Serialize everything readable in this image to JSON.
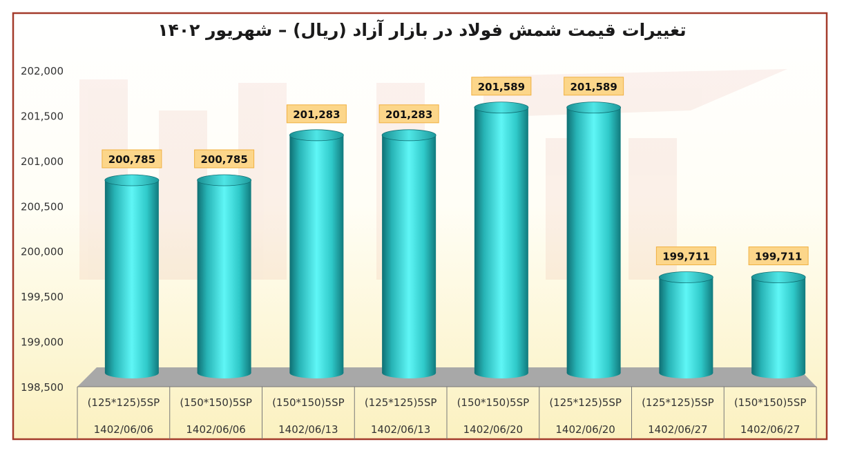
{
  "chart_data": {
    "type": "bar",
    "title": "تغییرات قیمت شمش فولاد در بازار آزاد (ریال) – شهریور ۱۴۰۲",
    "xlabel": "",
    "ylabel": "",
    "ylim": [
      198500,
      202000
    ],
    "yticks": [
      "198,500",
      "199,000",
      "199,500",
      "200,000",
      "200,500",
      "201,000",
      "201,500",
      "202,000"
    ],
    "ytick_values": [
      198500,
      199000,
      199500,
      200000,
      200500,
      201000,
      201500,
      202000
    ],
    "categories": [
      {
        "product": "(125*125)5SP",
        "date": "1402/06/06"
      },
      {
        "product": "(150*150)5SP",
        "date": "1402/06/06"
      },
      {
        "product": "(150*150)5SP",
        "date": "1402/06/13"
      },
      {
        "product": "(125*125)5SP",
        "date": "1402/06/13"
      },
      {
        "product": "(150*150)5SP",
        "date": "1402/06/20"
      },
      {
        "product": "(125*125)5SP",
        "date": "1402/06/20"
      },
      {
        "product": "(125*125)5SP",
        "date": "1402/06/27"
      },
      {
        "product": "(150*150)5SP",
        "date": "1402/06/27"
      }
    ],
    "values": [
      200785,
      200785,
      201283,
      201283,
      201589,
      201589,
      199711,
      199711
    ],
    "data_labels": [
      "200,785",
      "200,785",
      "201,283",
      "201,283",
      "201,589",
      "201,589",
      "199,711",
      "199,711"
    ],
    "bar_shape": "cylinder",
    "grid": false,
    "legend": "none"
  },
  "colors": {
    "border": "#a33a2a",
    "bar_light": "#5ff6f6",
    "bar_mid": "#2fc9c9",
    "bar_dark": "#0f6f73",
    "floor": "#a9a9a9",
    "label_fill": "#fcd68a",
    "label_stroke": "#f0b040",
    "bg_top": "#ffffff",
    "bg_bottom": "#fbf3c4"
  }
}
